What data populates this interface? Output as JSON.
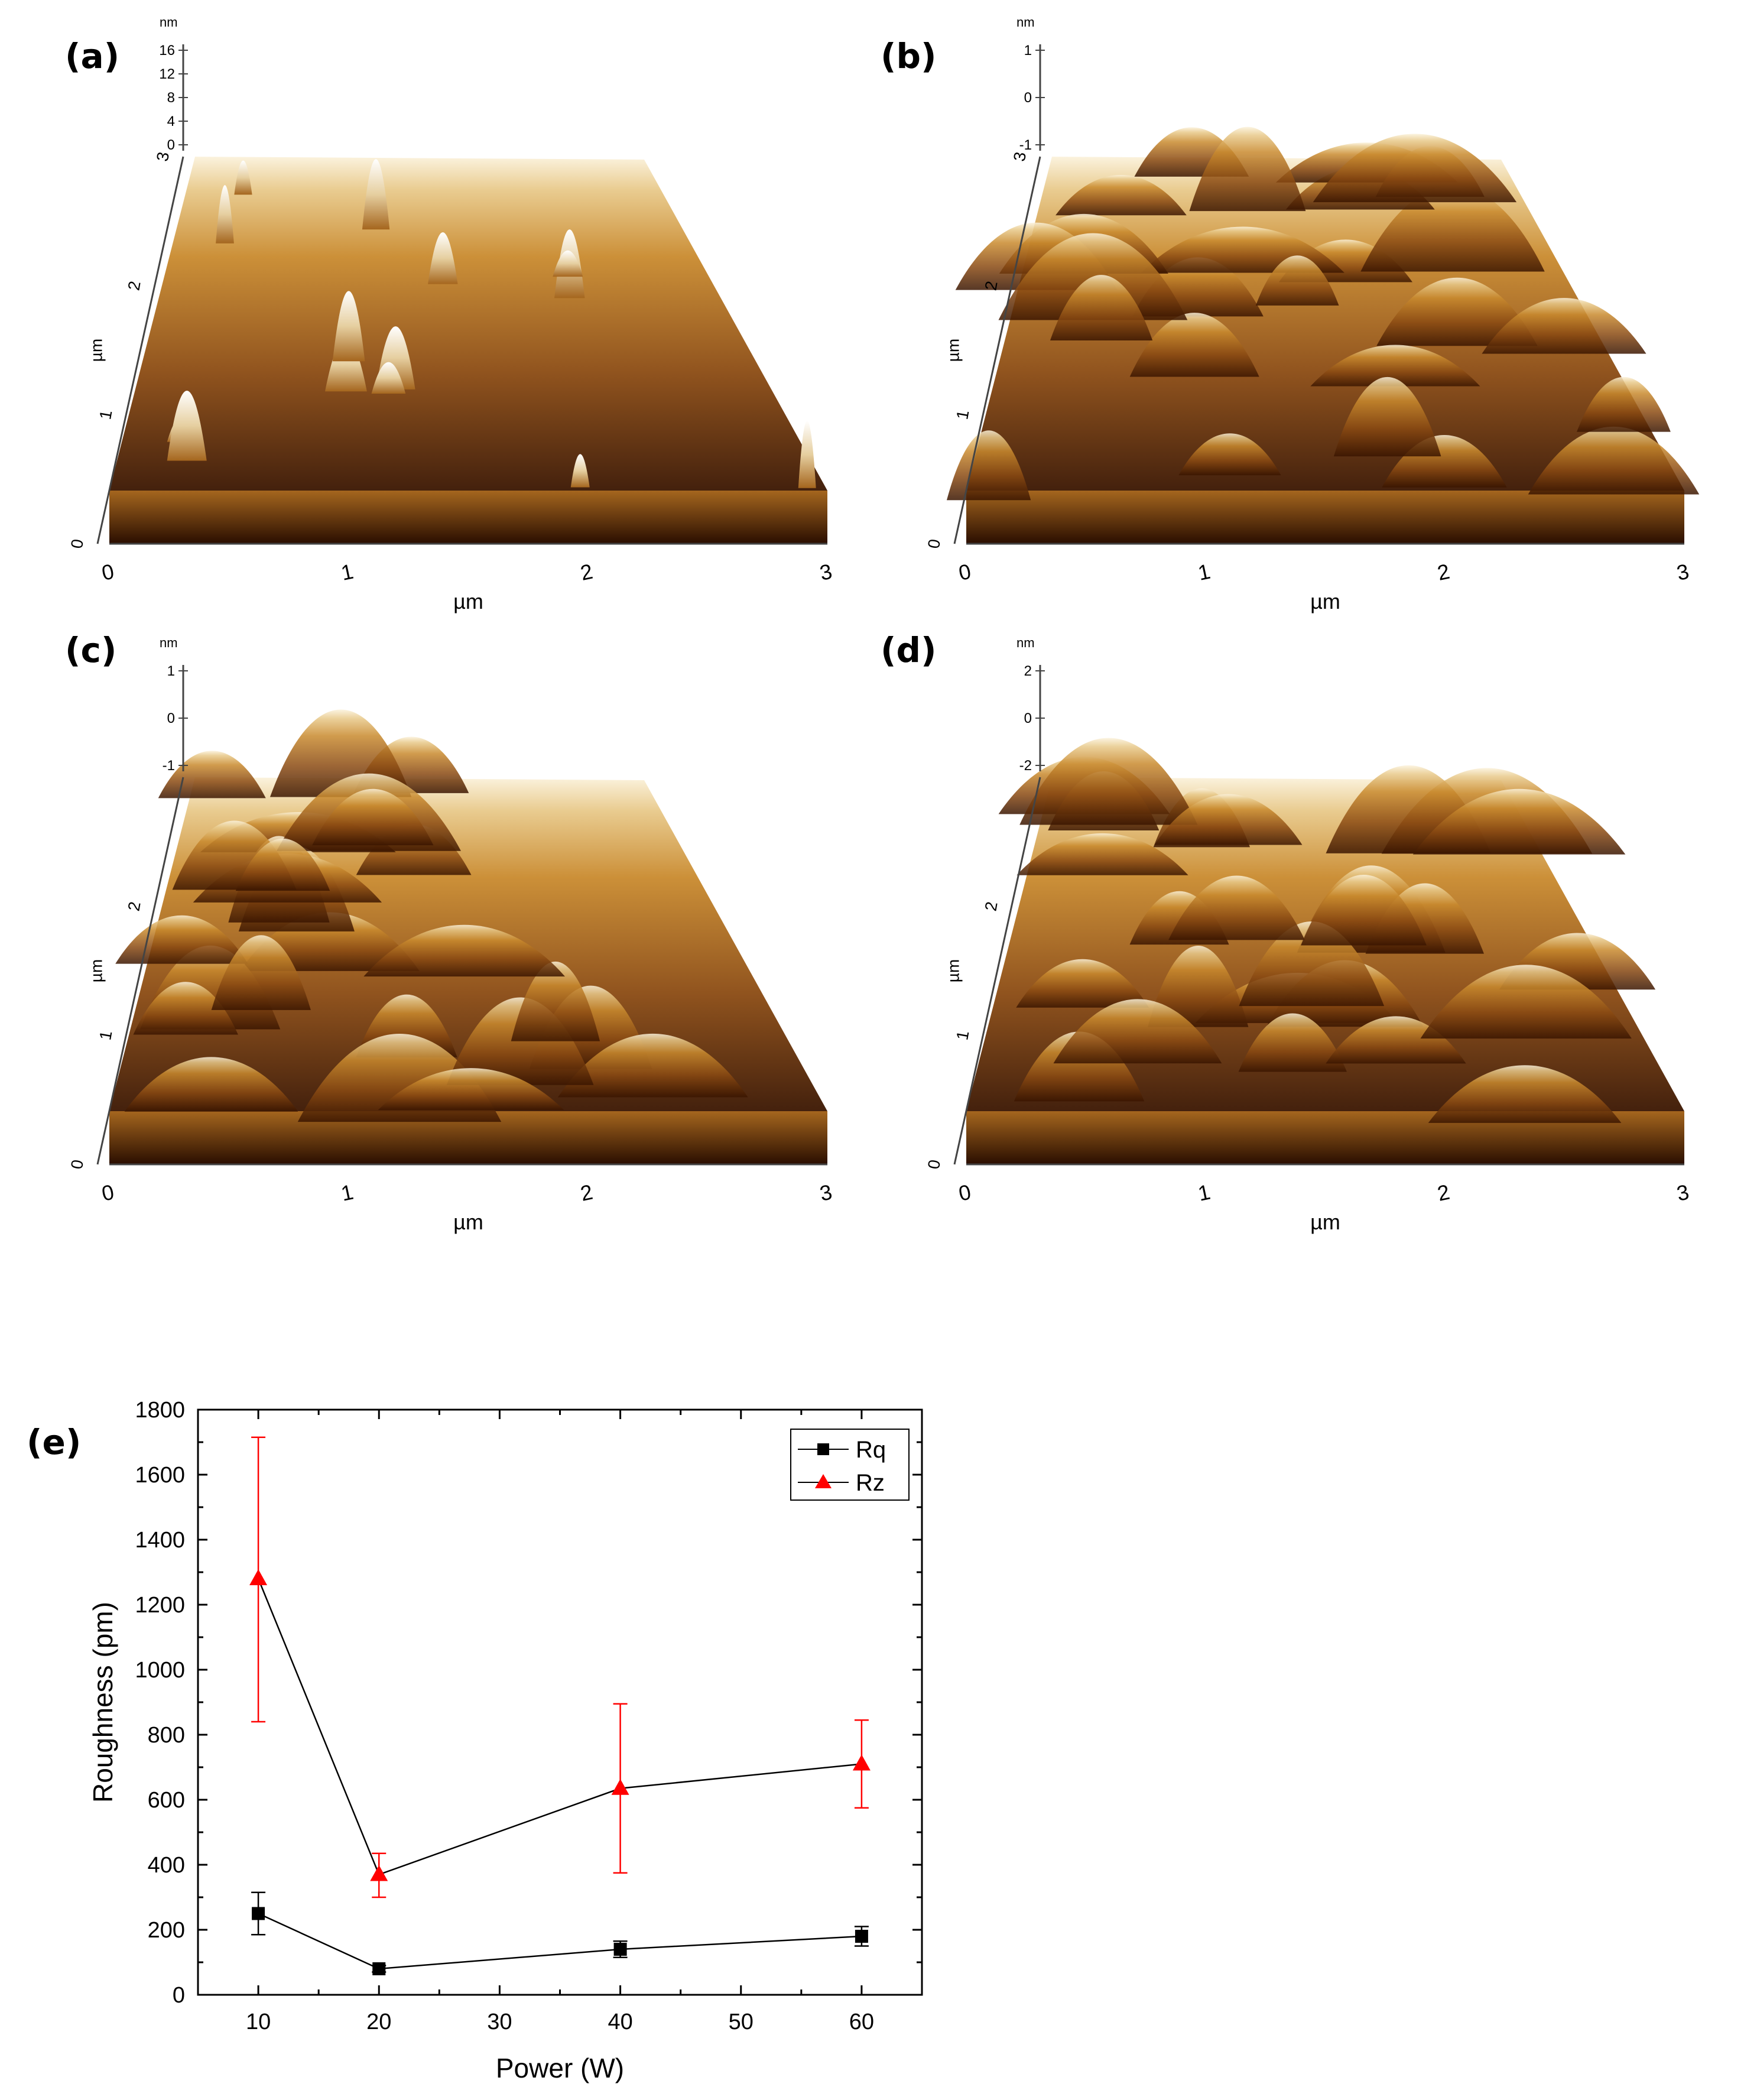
{
  "chart_data": [
    {
      "type": "heatmap",
      "panel_label": "(a)",
      "xlabel": "µm",
      "ylabel": "µm",
      "z_unit": "nm",
      "x_ticks": [
        "0",
        "1",
        "2",
        "3"
      ],
      "y_ticks": [
        "0",
        "1",
        "2",
        "3"
      ],
      "z_ticks": [
        "16",
        "12",
        "8",
        "4",
        "0"
      ],
      "colormap": [
        "#3a1500",
        "#8a4a12",
        "#c98a2e",
        "#e8c98a",
        "#ffffff"
      ]
    },
    {
      "type": "heatmap",
      "panel_label": "(b)",
      "xlabel": "µm",
      "ylabel": "µm",
      "z_unit": "nm",
      "x_ticks": [
        "0",
        "1",
        "2",
        "3"
      ],
      "y_ticks": [
        "0",
        "1",
        "2",
        "3"
      ],
      "z_ticks": [
        "1",
        "0",
        "-1"
      ],
      "colormap": [
        "#3a1500",
        "#8a4a12",
        "#c98a2e",
        "#e8c98a",
        "#ffffff"
      ]
    },
    {
      "type": "heatmap",
      "panel_label": "(c)",
      "xlabel": "µm",
      "ylabel": "µm",
      "z_unit": "nm",
      "x_ticks": [
        "0",
        "1",
        "2",
        "3"
      ],
      "y_ticks": [
        "0",
        "1",
        "2"
      ],
      "z_ticks": [
        "1",
        "0",
        "-1"
      ],
      "colormap": [
        "#3a1500",
        "#8a4a12",
        "#c98a2e",
        "#e8c98a",
        "#ffffff"
      ]
    },
    {
      "type": "heatmap",
      "panel_label": "(d)",
      "xlabel": "µm",
      "ylabel": "µm",
      "z_unit": "nm",
      "x_ticks": [
        "0",
        "1",
        "2",
        "3"
      ],
      "y_ticks": [
        "0",
        "1",
        "2"
      ],
      "z_ticks": [
        "2",
        "0",
        "-2"
      ],
      "colormap": [
        "#3a1500",
        "#8a4a12",
        "#c98a2e",
        "#e8c98a",
        "#ffffff"
      ]
    },
    {
      "type": "scatter",
      "panel_label": "(e)",
      "xlabel": "Power (W)",
      "ylabel": "Roughness (pm)",
      "xlim": [
        5,
        65
      ],
      "ylim": [
        0,
        1800
      ],
      "x_ticks": [
        10,
        20,
        30,
        40,
        50,
        60
      ],
      "y_ticks": [
        0,
        200,
        400,
        600,
        800,
        1000,
        1200,
        1400,
        1600,
        1800
      ],
      "grid": false,
      "legend": "top-right",
      "x": [
        10,
        20,
        40,
        60
      ],
      "series": [
        {
          "name": "Rq",
          "marker": "square",
          "color": "#000000",
          "values": [
            250,
            80,
            140,
            180
          ],
          "error_low": [
            185,
            70,
            115,
            150
          ],
          "error_high": [
            315,
            90,
            165,
            210
          ]
        },
        {
          "name": "Rz",
          "marker": "triangle",
          "color": "#ff0000",
          "values": [
            1280,
            370,
            635,
            710
          ],
          "error_low": [
            840,
            300,
            375,
            575
          ],
          "error_high": [
            1715,
            435,
            895,
            845
          ]
        }
      ]
    }
  ]
}
